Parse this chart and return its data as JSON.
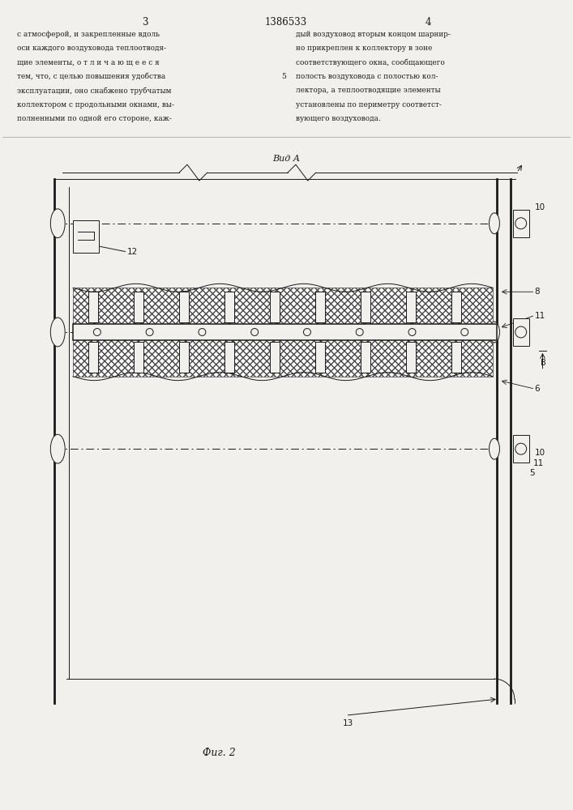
{
  "bg_color": "#f2f0ec",
  "line_color": "#1a1a1a",
  "hatch_color": "#444444",
  "page_width": 7.07,
  "page_height": 10.0,
  "header": {
    "left_page_num": "3",
    "patent_num": "1386533",
    "right_page_num": "4"
  },
  "text_left": [
    "с атмосферой, и закрепленные вдоль",
    "оси каждого воздуховода теплоотводя-",
    "щие элементы, о т л и ч а ю щ е е с я",
    "тем, что, с целью повышения удобства",
    "эксплуатации, оно снабжено трубчатым",
    "коллектором с продольными окнами, вы-",
    "полненными по одной его стороне, каж-"
  ],
  "text_right": [
    "дый воздуховод вторым концом шарнир-",
    "но прикреплен к коллектору в зоне",
    "соответствующего окна, сообщающего",
    "полость воздуховода с полостью кол-",
    "лектора, а теплоотводящие элементы",
    "установлены по периметру соответст-",
    "вующего воздуховода."
  ],
  "fig_caption": "Вид А",
  "fig2_caption": "Фиг. 2"
}
